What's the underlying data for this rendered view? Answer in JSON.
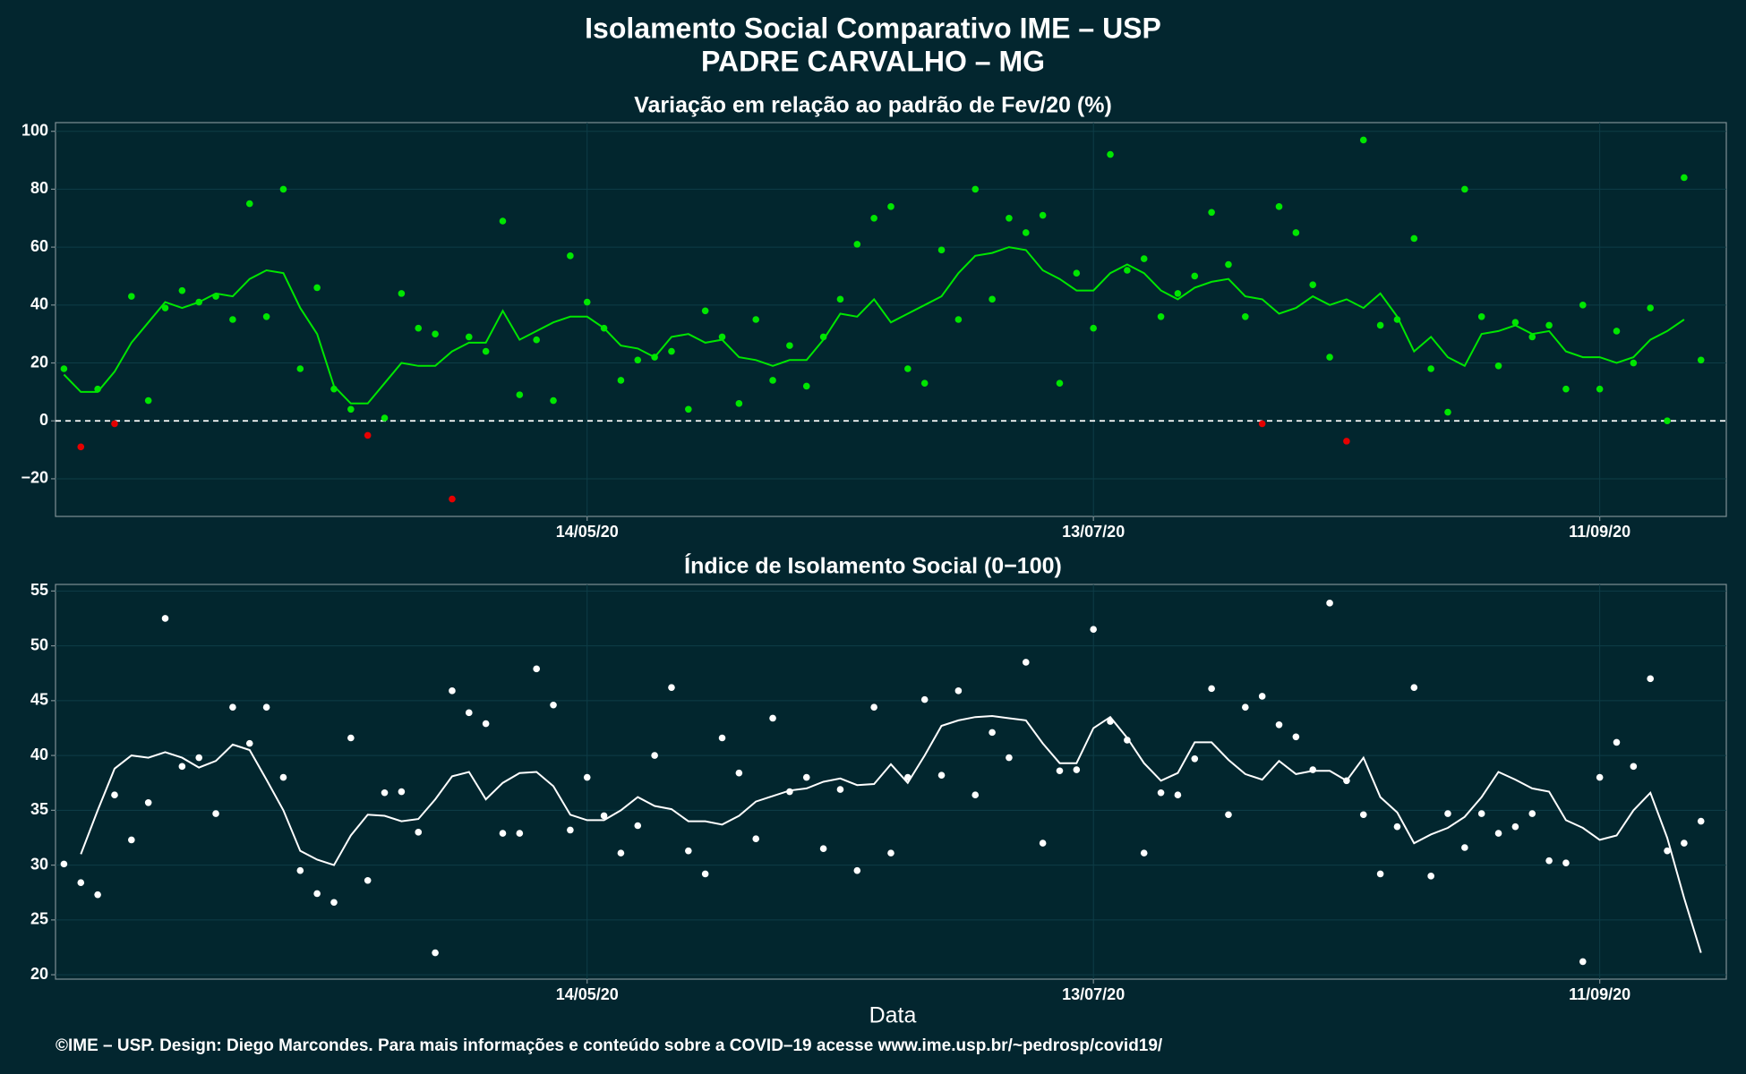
{
  "title": "Isolamento Social Comparativo IME – USP",
  "subtitle": "PADRE CARVALHO – MG",
  "footer": "©IME – USP. Design: Diego Marcondes. Para mais informações e conteúdo sobre a COVID–19 acesse www.ime.usp.br/~pedrosp/covid19/",
  "chart_data": [
    {
      "type": "scatter",
      "title": "Variação em relação ao padrão de Fev/20 (%)",
      "x": [
        "13/03/20",
        "15/03/20",
        "17/03/20",
        "19/03/20",
        "21/03/20",
        "23/03/20",
        "25/03/20",
        "27/03/20",
        "29/03/20",
        "31/03/20",
        "02/04/20",
        "04/04/20",
        "06/04/20",
        "08/04/20",
        "10/04/20",
        "12/04/20",
        "14/04/20",
        "16/04/20",
        "18/04/20",
        "20/04/20",
        "22/04/20",
        "24/04/20",
        "26/04/20",
        "28/04/20",
        "30/04/20",
        "02/05/20",
        "04/05/20",
        "06/05/20",
        "08/05/20",
        "10/05/20",
        "12/05/20",
        "14/05/20",
        "16/05/20",
        "18/05/20",
        "20/05/20",
        "22/05/20",
        "24/05/20",
        "26/05/20",
        "28/05/20",
        "30/05/20",
        "01/06/20",
        "03/06/20",
        "05/06/20",
        "07/06/20",
        "09/06/20",
        "11/06/20",
        "13/06/20",
        "15/06/20",
        "17/06/20",
        "19/06/20",
        "21/06/20",
        "23/06/20",
        "25/06/20",
        "27/06/20",
        "29/06/20",
        "01/07/20",
        "03/07/20",
        "05/07/20",
        "07/07/20",
        "09/07/20",
        "11/07/20",
        "13/07/20",
        "15/07/20",
        "17/07/20",
        "19/07/20",
        "21/07/20",
        "23/07/20",
        "25/07/20",
        "27/07/20",
        "29/07/20",
        "31/07/20",
        "02/08/20",
        "04/08/20",
        "06/08/20",
        "08/08/20",
        "10/08/20",
        "12/08/20",
        "14/08/20",
        "16/08/20",
        "18/08/20",
        "20/08/20",
        "22/08/20",
        "24/08/20",
        "26/08/20",
        "28/08/20",
        "30/08/20",
        "01/09/20",
        "03/09/20",
        "05/09/20",
        "07/09/20",
        "09/09/20",
        "11/09/20",
        "13/09/20",
        "15/09/20",
        "17/09/20",
        "19/09/20",
        "21/09/20",
        "23/09/20"
      ],
      "dots": {
        "color": "#00e600",
        "negative_color": "#e60000",
        "values": [
          18,
          -9,
          11,
          -1,
          43,
          7,
          39,
          45,
          41,
          43,
          35,
          75,
          36,
          80,
          18,
          46,
          11,
          4,
          -5,
          1,
          44,
          32,
          30,
          -27,
          29,
          24,
          69,
          9,
          28,
          7,
          57,
          41,
          32,
          14,
          21,
          22,
          24,
          4,
          38,
          29,
          6,
          35,
          14,
          26,
          12,
          29,
          42,
          61,
          70,
          74,
          18,
          13,
          59,
          35,
          80,
          42,
          70,
          65,
          71,
          13,
          51,
          32,
          92,
          52,
          56,
          36,
          44,
          50,
          72,
          54,
          36,
          -1,
          74,
          65,
          47,
          22,
          -7,
          97,
          33,
          35,
          63,
          18,
          3,
          80,
          36,
          19,
          34,
          29,
          33,
          11,
          40,
          11,
          31,
          20,
          39,
          0,
          84,
          21
        ]
      },
      "trend": {
        "color": "#00e600",
        "values": [
          16,
          10,
          10,
          17,
          27,
          34,
          41,
          39,
          41,
          44,
          43,
          49,
          52,
          51,
          39,
          30,
          12,
          6,
          6,
          13,
          20,
          19,
          19,
          24,
          27,
          27,
          38,
          28,
          31,
          34,
          36,
          36,
          32,
          26,
          25,
          22,
          29,
          30,
          27,
          28,
          22,
          21,
          19,
          21,
          21,
          28,
          37,
          36,
          42,
          34,
          37,
          40,
          43,
          51,
          57,
          58,
          60,
          59,
          52,
          49,
          45,
          45,
          51,
          54,
          51,
          45,
          42,
          46,
          48,
          49,
          43,
          42,
          37,
          39,
          43,
          40,
          42,
          39,
          44,
          36,
          24,
          29,
          22,
          19,
          30,
          31,
          33,
          30,
          31,
          24,
          22,
          22,
          20,
          22,
          28,
          31,
          35,
          null
        ]
      },
      "hline": 0,
      "xlim": [
        "12/03/20",
        "26/09/20"
      ],
      "xticks": [
        "14/05/20",
        "13/07/20",
        "11/09/20"
      ],
      "ylim": [
        -33,
        103
      ],
      "yticks": [
        {
          "value": -20,
          "label": "−20"
        },
        0,
        20,
        40,
        60,
        80,
        100
      ],
      "grid": true
    },
    {
      "type": "scatter",
      "title": "Índice de Isolamento Social (0−100)",
      "xlabel": "Data",
      "x": [
        "13/03/20",
        "15/03/20",
        "17/03/20",
        "19/03/20",
        "21/03/20",
        "23/03/20",
        "25/03/20",
        "27/03/20",
        "29/03/20",
        "31/03/20",
        "02/04/20",
        "04/04/20",
        "06/04/20",
        "08/04/20",
        "10/04/20",
        "12/04/20",
        "14/04/20",
        "16/04/20",
        "18/04/20",
        "20/04/20",
        "22/04/20",
        "24/04/20",
        "26/04/20",
        "28/04/20",
        "30/04/20",
        "02/05/20",
        "04/05/20",
        "06/05/20",
        "08/05/20",
        "10/05/20",
        "12/05/20",
        "14/05/20",
        "16/05/20",
        "18/05/20",
        "20/05/20",
        "22/05/20",
        "24/05/20",
        "26/05/20",
        "28/05/20",
        "30/05/20",
        "01/06/20",
        "03/06/20",
        "05/06/20",
        "07/06/20",
        "09/06/20",
        "11/06/20",
        "13/06/20",
        "15/06/20",
        "17/06/20",
        "19/06/20",
        "21/06/20",
        "23/06/20",
        "25/06/20",
        "27/06/20",
        "29/06/20",
        "01/07/20",
        "03/07/20",
        "05/07/20",
        "07/07/20",
        "09/07/20",
        "11/07/20",
        "13/07/20",
        "15/07/20",
        "17/07/20",
        "19/07/20",
        "21/07/20",
        "23/07/20",
        "25/07/20",
        "27/07/20",
        "29/07/20",
        "31/07/20",
        "02/08/20",
        "04/08/20",
        "06/08/20",
        "08/08/20",
        "10/08/20",
        "12/08/20",
        "14/08/20",
        "16/08/20",
        "18/08/20",
        "20/08/20",
        "22/08/20",
        "24/08/20",
        "26/08/20",
        "28/08/20",
        "30/08/20",
        "01/09/20",
        "03/09/20",
        "05/09/20",
        "07/09/20",
        "09/09/20",
        "11/09/20",
        "13/09/20",
        "15/09/20",
        "17/09/20",
        "19/09/20",
        "21/09/20",
        "23/09/20"
      ],
      "dots": {
        "color": "#ffffff",
        "values": [
          30.1,
          28.4,
          27.3,
          36.4,
          32.3,
          35.7,
          52.5,
          39,
          39.8,
          34.7,
          44.4,
          41.1,
          44.4,
          38,
          29.5,
          27.4,
          26.6,
          41.6,
          28.6,
          36.6,
          36.7,
          33,
          22,
          45.9,
          43.9,
          42.9,
          32.9,
          32.9,
          47.9,
          44.6,
          33.2,
          38,
          34.5,
          31.1,
          33.6,
          40,
          46.2,
          31.3,
          29.2,
          41.6,
          38.4,
          32.4,
          43.4,
          36.7,
          38,
          31.5,
          36.9,
          29.5,
          44.4,
          31.1,
          38,
          45.1,
          38.2,
          45.9,
          36.4,
          42.1,
          39.8,
          48.5,
          32,
          38.6,
          38.7,
          51.5,
          43.1,
          41.4,
          31.1,
          36.6,
          36.4,
          39.7,
          46.1,
          34.6,
          44.4,
          45.4,
          42.8,
          41.7,
          38.7,
          53.9,
          37.7,
          34.6,
          29.2,
          33.5,
          46.2,
          29,
          34.7,
          31.6,
          34.7,
          32.9,
          33.5,
          34.7,
          30.4,
          30.2,
          21.2,
          38,
          41.2,
          39,
          47,
          31.3,
          32,
          34
        ]
      },
      "trend": {
        "color": "#ffffff",
        "values": [
          null,
          31,
          35,
          38.8,
          40,
          39.8,
          40.3,
          39.8,
          38.9,
          39.5,
          41,
          40.5,
          37.8,
          35,
          31.3,
          30.5,
          30,
          32.7,
          34.6,
          34.5,
          34,
          34.2,
          36,
          38.1,
          38.5,
          36,
          37.5,
          38.4,
          38.5,
          37.2,
          34.6,
          34.1,
          34.1,
          35,
          36.2,
          35.4,
          35.1,
          34,
          34,
          33.7,
          34.5,
          35.8,
          36.3,
          36.8,
          37,
          37.6,
          37.9,
          37.3,
          37.4,
          39.2,
          37.5,
          40,
          42.7,
          43.2,
          43.5,
          43.6,
          43.4,
          43.2,
          41.1,
          39.3,
          39.3,
          42.5,
          43.5,
          41.6,
          39.3,
          37.7,
          38.4,
          41.2,
          41.2,
          39.6,
          38.3,
          37.8,
          39.5,
          38.3,
          38.6,
          38.6,
          37.7,
          39.8,
          36.2,
          34.8,
          32,
          32.8,
          33.4,
          34.4,
          36.2,
          38.5,
          37.8,
          37,
          36.7,
          34.1,
          33.4,
          32.3,
          32.7,
          35,
          36.6,
          32.5,
          27,
          22
        ]
      },
      "xlim": [
        "12/03/20",
        "26/09/20"
      ],
      "xticks": [
        "14/05/20",
        "13/07/20",
        "11/09/20"
      ],
      "ylim": [
        19.6,
        55.6
      ],
      "yticks": [
        20,
        25,
        30,
        35,
        40,
        45,
        50,
        55
      ],
      "grid": true
    }
  ]
}
